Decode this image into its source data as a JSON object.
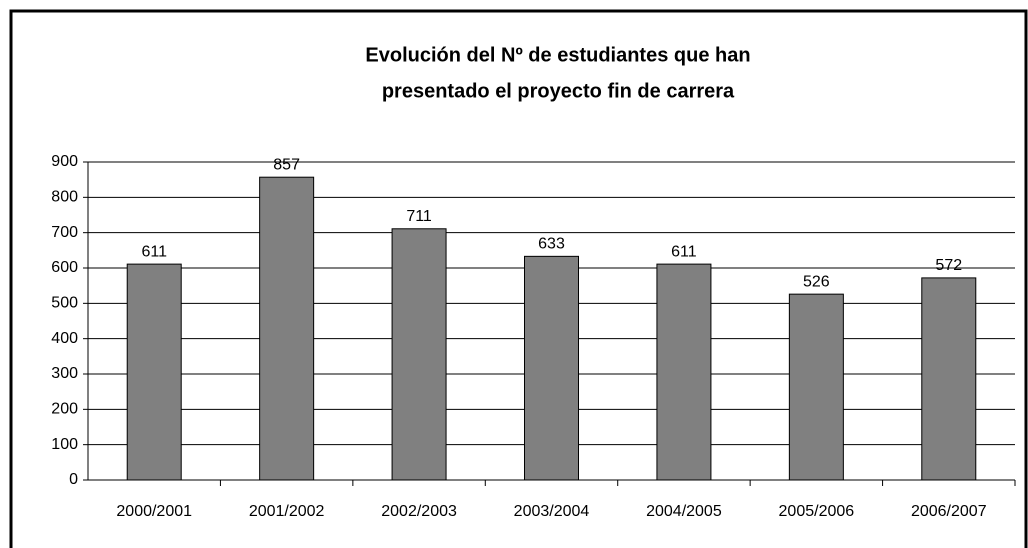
{
  "chart_data": {
    "type": "bar",
    "title": [
      "Evolución del Nº de estudiantes que han",
      "presentado el proyecto fin de carrera"
    ],
    "categories": [
      "2000/2001",
      "2001/2002",
      "2002/2003",
      "2003/2004",
      "2004/2005",
      "2005/2006",
      "2006/2007"
    ],
    "values": [
      611,
      857,
      711,
      633,
      611,
      526,
      572
    ],
    "color": "#808080",
    "ylim": [
      0,
      900
    ],
    "yticks": [
      0,
      100,
      200,
      300,
      400,
      500,
      600,
      700,
      800,
      900
    ],
    "grid": true
  }
}
